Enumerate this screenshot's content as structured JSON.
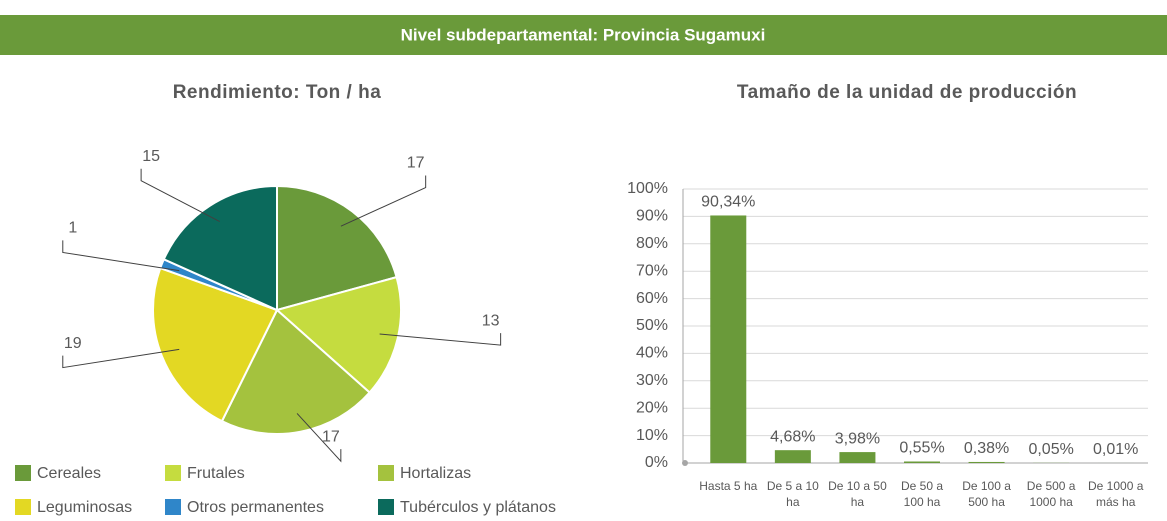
{
  "header": {
    "title": "Nivel subdepartamental: Provincia Sugamuxi"
  },
  "chart_data": [
    {
      "type": "pie",
      "title": "Rendimiento: Ton / ha",
      "categories": [
        "Cereales",
        "Frutales",
        "Hortalizas",
        "Leguminosas",
        "Otros permanentes",
        "Tubérculos y plátanos"
      ],
      "values": [
        17,
        13,
        17,
        19,
        1,
        15
      ],
      "colors": [
        "#6a9a3a",
        "#c5dc3f",
        "#a4c23e",
        "#e3d823",
        "#2f86c9",
        "#0b6a5c"
      ],
      "legend": "bottom"
    },
    {
      "type": "bar",
      "title": "Tamaño de la unidad de producción",
      "categories": [
        "Hasta 5 ha",
        "De 5 a 10 ha",
        "De 10 a 50 ha",
        "De 50 a 100 ha",
        "De 100 a 500 ha",
        "De 500 a 1000 ha",
        "De 1000 a más ha"
      ],
      "values": [
        90.34,
        4.68,
        3.98,
        0.55,
        0.38,
        0.05,
        0.01
      ],
      "value_labels": [
        "90,34%",
        "4,68%",
        "3,98%",
        "0,55%",
        "0,38%",
        "0,05%",
        "0,01%"
      ],
      "color": "#6a9a3a",
      "ylim": [
        0,
        100
      ],
      "yticks": [
        {
          "value": 0,
          "label": "0%"
        },
        {
          "value": 10,
          "label": "10%"
        },
        {
          "value": 20,
          "label": "20%"
        },
        {
          "value": 30,
          "label": "30%"
        },
        {
          "value": 40,
          "label": "40%"
        },
        {
          "value": 50,
          "label": "50%"
        },
        {
          "value": 60,
          "label": "60%"
        },
        {
          "value": 70,
          "label": "70%"
        },
        {
          "value": 80,
          "label": "80%"
        },
        {
          "value": 90,
          "label": "90%"
        },
        {
          "value": 100,
          "label": "100%"
        }
      ],
      "grid": true
    }
  ]
}
